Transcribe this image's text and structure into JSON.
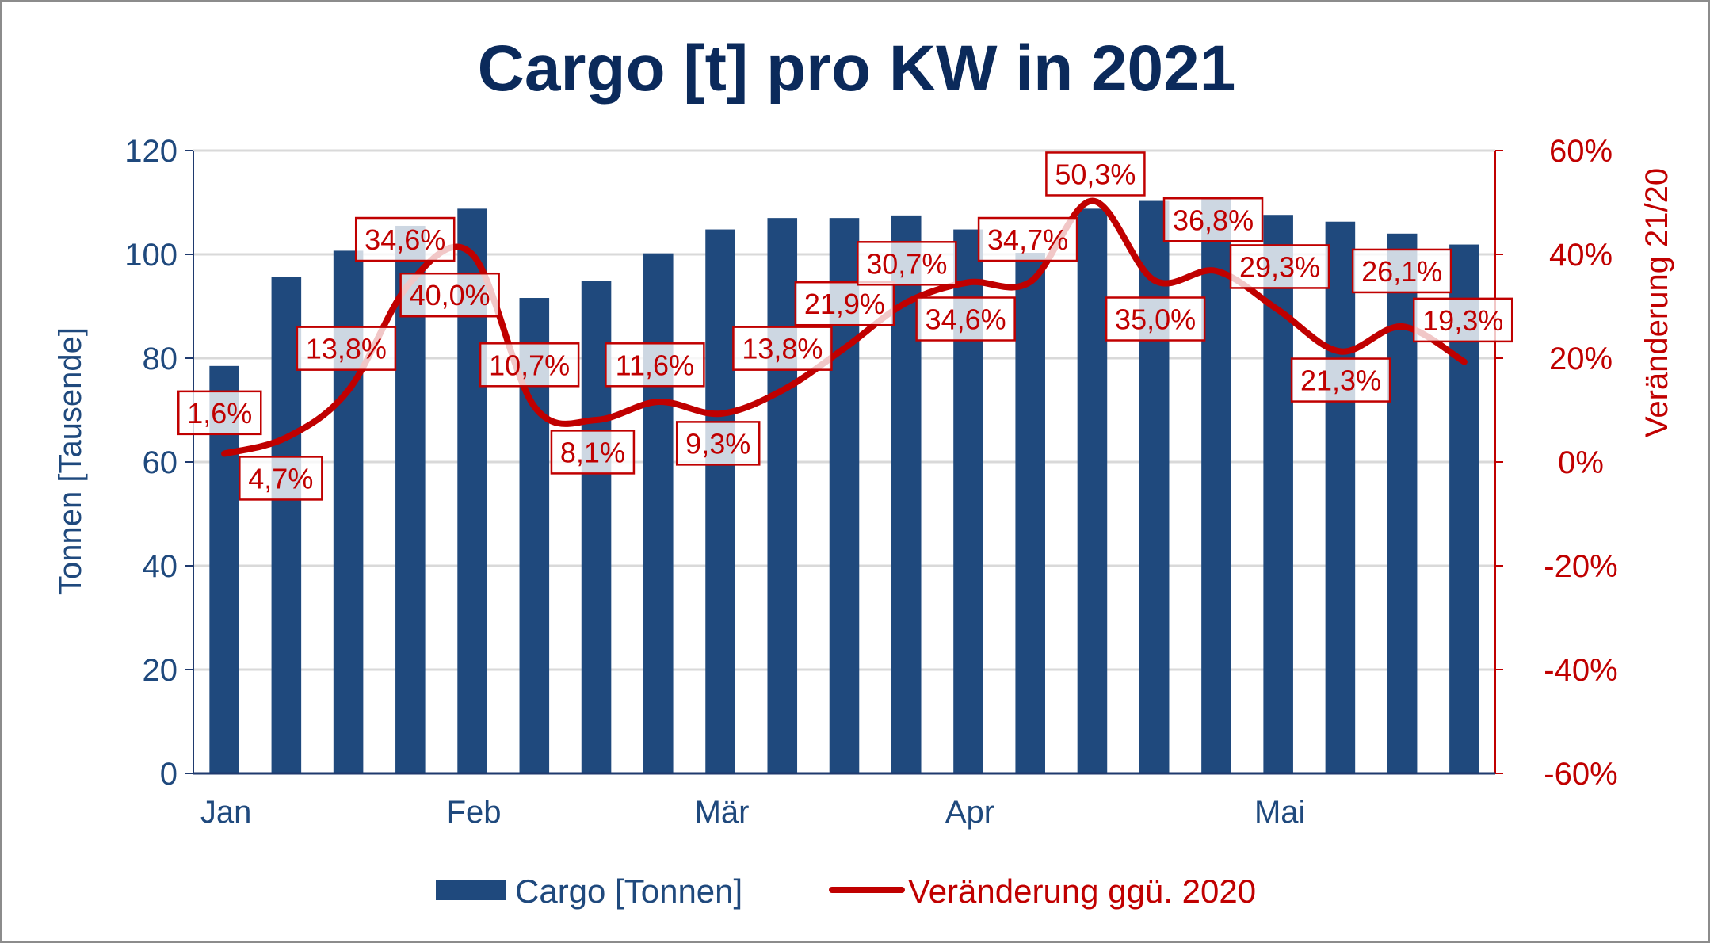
{
  "chart_data": {
    "type": "bar+line",
    "title": "Cargo [t] pro KW in 2021",
    "ylabel": "Tonnen [Tausende]",
    "y2label": "Veränderung 21/20",
    "ylim": [
      0,
      120
    ],
    "yticks": [
      "0",
      "20",
      "40",
      "60",
      "80",
      "100",
      "120"
    ],
    "y2lim": [
      -60,
      60
    ],
    "y2ticks": [
      "-60%",
      "-40%",
      "-20%",
      "0%",
      "20%",
      "40%",
      "60%"
    ],
    "month_labels": [
      {
        "label": "Jan",
        "at_week": 1
      },
      {
        "label": "Feb",
        "at_week": 5
      },
      {
        "label": "Mär",
        "at_week": 9
      },
      {
        "label": "Apr",
        "at_week": 13
      },
      {
        "label": "Mai",
        "at_week": 18
      }
    ],
    "grid": true,
    "legend_position": "bottom",
    "series": [
      {
        "name": "Cargo [Tonnen]",
        "type": "bar",
        "axis": "left",
        "color": "#1f497d",
        "values": [
          78.5,
          95.7,
          100.7,
          105.5,
          108.8,
          91.6,
          94.9,
          100.2,
          104.8,
          107.0,
          107.0,
          107.5,
          104.8,
          100.3,
          108.8,
          110.3,
          110.7,
          107.6,
          106.3,
          104.0,
          101.9
        ]
      },
      {
        "name": "Veränderung ggü. 2020",
        "type": "line",
        "smooth": true,
        "axis": "right",
        "color": "#c00000",
        "values": [
          1.6,
          4.7,
          13.8,
          34.6,
          40.0,
          10.7,
          8.1,
          11.6,
          9.3,
          13.8,
          21.9,
          30.7,
          34.6,
          34.7,
          50.3,
          35.0,
          36.8,
          29.3,
          21.3,
          26.1,
          19.3
        ],
        "data_labels": [
          "1,6%",
          "4,7%",
          "13,8%",
          "34,6%",
          "40,0%",
          "10,7%",
          "8,1%",
          "11,6%",
          "9,3%",
          "13,8%",
          "21,9%",
          "30,7%",
          "34,6%",
          "34,7%",
          "50,3%",
          "35,0%",
          "36,8%",
          "29,3%",
          "21,3%",
          "26,1%",
          "19,3%"
        ]
      }
    ]
  }
}
